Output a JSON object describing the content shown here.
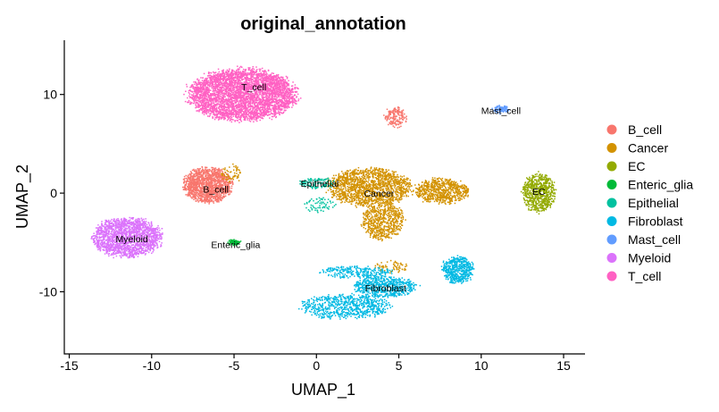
{
  "chart_data": {
    "type": "scatter",
    "title": "original_annotation",
    "xlabel": "UMAP_1",
    "ylabel": "UMAP_2",
    "xlim": [
      -15.3,
      16.3
    ],
    "ylim": [
      -16.3,
      15.5
    ],
    "xticks": [
      -15,
      -10,
      -5,
      0,
      5,
      10,
      15
    ],
    "yticks": [
      -10,
      0,
      10
    ],
    "grid": false,
    "legend_position": "right",
    "series": [
      {
        "name": "B_cell",
        "color": "#F8766D",
        "clusters": [
          {
            "center": [
              -6.6,
              0.8
            ],
            "spread": [
              1.4,
              1.7
            ],
            "n": 1300
          },
          {
            "center": [
              4.8,
              7.7
            ],
            "spread": [
              0.6,
              0.9
            ],
            "n": 170
          }
        ]
      },
      {
        "name": "Cancer",
        "color": "#D39200",
        "clusters": [
          {
            "center": [
              3.2,
              0.6
            ],
            "spread": [
              2.4,
              1.8
            ],
            "n": 1500
          },
          {
            "center": [
              4.0,
              -2.8
            ],
            "spread": [
              1.2,
              1.8
            ],
            "n": 600
          },
          {
            "center": [
              7.6,
              0.2
            ],
            "spread": [
              1.6,
              1.2
            ],
            "n": 700
          },
          {
            "center": [
              -5.2,
              2.0
            ],
            "spread": [
              0.6,
              0.9
            ],
            "n": 60
          },
          {
            "center": [
              4.5,
              -7.5
            ],
            "spread": [
              1.0,
              0.6
            ],
            "n": 70
          }
        ]
      },
      {
        "name": "EC",
        "color": "#93AA00",
        "clusters": [
          {
            "center": [
              13.5,
              0.0
            ],
            "spread": [
              0.9,
              1.9
            ],
            "n": 700
          }
        ]
      },
      {
        "name": "Enteric_glia",
        "color": "#00BA38",
        "clusters": [
          {
            "center": [
              -5.0,
              -5.0
            ],
            "spread": [
              0.35,
              0.25
            ],
            "n": 80
          }
        ]
      },
      {
        "name": "Epithelial",
        "color": "#00C19F",
        "clusters": [
          {
            "center": [
              0.0,
              1.0
            ],
            "spread": [
              1.1,
              0.5
            ],
            "n": 120
          },
          {
            "center": [
              0.3,
              -1.2
            ],
            "spread": [
              1.0,
              0.7
            ],
            "n": 70
          }
        ]
      },
      {
        "name": "Fibroblast",
        "color": "#00B9E3",
        "clusters": [
          {
            "center": [
              4.2,
              -9.5
            ],
            "spread": [
              1.8,
              1.0
            ],
            "n": 600
          },
          {
            "center": [
              8.6,
              -7.8
            ],
            "spread": [
              0.9,
              1.3
            ],
            "n": 500
          },
          {
            "center": [
              1.8,
              -11.5
            ],
            "spread": [
              2.6,
              1.2
            ],
            "n": 700
          },
          {
            "center": [
              2.5,
              -8.0
            ],
            "spread": [
              2.2,
              0.6
            ],
            "n": 250
          }
        ]
      },
      {
        "name": "Mast_cell",
        "color": "#619CFF",
        "clusters": [
          {
            "center": [
              11.2,
              8.5
            ],
            "spread": [
              0.45,
              0.35
            ],
            "n": 110
          }
        ]
      },
      {
        "name": "Myeloid",
        "color": "#DB72FB",
        "clusters": [
          {
            "center": [
              -11.5,
              -4.5
            ],
            "spread": [
              2.0,
              1.9
            ],
            "n": 1800
          }
        ]
      },
      {
        "name": "T_cell",
        "color": "#FF61C3",
        "clusters": [
          {
            "center": [
              -4.5,
              10.0
            ],
            "spread": [
              3.1,
              2.5
            ],
            "n": 4000
          }
        ]
      }
    ],
    "cluster_labels": [
      {
        "text": "T_cell",
        "x": -3.8,
        "y": 10.8
      },
      {
        "text": "Mast_cell",
        "x": 11.2,
        "y": 8.4
      },
      {
        "text": "Epithelial",
        "x": 0.2,
        "y": 1.0
      },
      {
        "text": "B_cell",
        "x": -6.1,
        "y": 0.4
      },
      {
        "text": "Cancer",
        "x": 3.8,
        "y": 0.0
      },
      {
        "text": "EC",
        "x": 13.5,
        "y": 0.2
      },
      {
        "text": "Myeloid",
        "x": -11.2,
        "y": -4.6
      },
      {
        "text": "Enteric_glia",
        "x": -4.9,
        "y": -5.2
      },
      {
        "text": "Fibroblast",
        "x": 4.2,
        "y": -9.6
      }
    ]
  }
}
